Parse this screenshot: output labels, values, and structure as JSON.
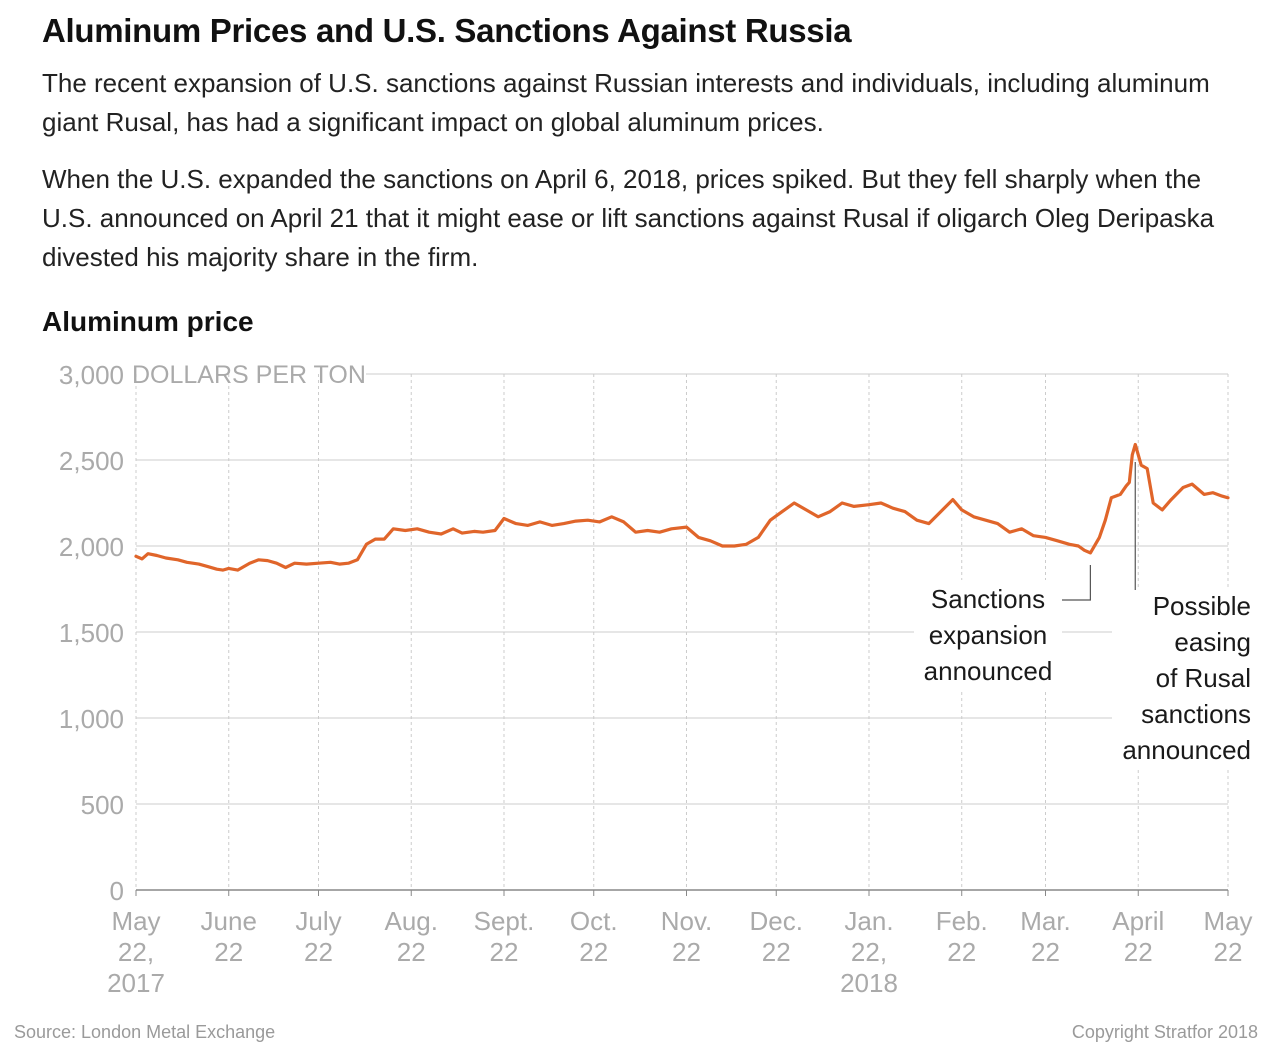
{
  "title": "Aluminum Prices and U.S. Sanctions Against Russia",
  "paragraphs": [
    "The recent expansion of U.S. sanctions against Russian interests and individuals, including aluminum giant Rusal, has had a significant impact on global aluminum prices.",
    "When the U.S. expanded the sanctions on April 6, 2018, prices spiked. But they fell sharply when the U.S. announced on April 21 that it might ease or lift sanctions against Rusal if oligarch Oleg Deripaska divested his majority share in the firm."
  ],
  "source": "Source: London Metal Exchange",
  "copyright": "Copyright Stratfor 2018",
  "colors": {
    "line": "#e0652a",
    "grid": "#cccccc",
    "axis_text": "#aaaaaa"
  },
  "chart_data": {
    "type": "line",
    "title": "Aluminum price",
    "ylabel": "DOLLARS PER TON",
    "ylim": [
      0,
      3000
    ],
    "yticks": [
      0,
      500,
      1000,
      1500,
      2000,
      2500,
      3000
    ],
    "ytick_labels": [
      "0",
      "500",
      "1,000",
      "1,500",
      "2,000",
      "2,500",
      "3,000"
    ],
    "xlim": [
      "2017-05-22",
      "2018-05-22"
    ],
    "xticks": [
      {
        "date": "2017-05-22",
        "label": [
          "May",
          "22,",
          "2017"
        ]
      },
      {
        "date": "2017-06-22",
        "label": [
          "June",
          "22"
        ]
      },
      {
        "date": "2017-07-22",
        "label": [
          "July",
          "22"
        ]
      },
      {
        "date": "2017-08-22",
        "label": [
          "Aug.",
          "22"
        ]
      },
      {
        "date": "2017-09-22",
        "label": [
          "Sept.",
          "22"
        ]
      },
      {
        "date": "2017-10-22",
        "label": [
          "Oct.",
          "22"
        ]
      },
      {
        "date": "2017-11-22",
        "label": [
          "Nov.",
          "22"
        ]
      },
      {
        "date": "2017-12-22",
        "label": [
          "Dec.",
          "22"
        ]
      },
      {
        "date": "2018-01-22",
        "label": [
          "Jan.",
          "22,",
          "2018"
        ]
      },
      {
        "date": "2018-02-22",
        "label": [
          "Feb.",
          "22"
        ]
      },
      {
        "date": "2018-03-22",
        "label": [
          "Mar.",
          "22"
        ]
      },
      {
        "date": "2018-04-22",
        "label": [
          "April",
          "22"
        ]
      },
      {
        "date": "2018-05-22",
        "label": [
          "May",
          "22"
        ]
      }
    ],
    "grid": true,
    "series": [
      {
        "x": [
          "2017-05-22",
          "2017-05-24",
          "2017-05-26",
          "2017-05-29",
          "2017-06-01",
          "2017-06-05",
          "2017-06-08",
          "2017-06-12",
          "2017-06-15",
          "2017-06-18",
          "2017-06-20",
          "2017-06-22",
          "2017-06-25",
          "2017-06-29",
          "2017-07-02",
          "2017-07-05",
          "2017-07-08",
          "2017-07-11",
          "2017-07-14",
          "2017-07-18",
          "2017-07-22",
          "2017-07-26",
          "2017-07-29",
          "2017-08-01",
          "2017-08-04",
          "2017-08-07",
          "2017-08-10",
          "2017-08-13",
          "2017-08-16",
          "2017-08-20",
          "2017-08-24",
          "2017-08-28",
          "2017-09-01",
          "2017-09-05",
          "2017-09-08",
          "2017-09-12",
          "2017-09-15",
          "2017-09-19",
          "2017-09-22",
          "2017-09-26",
          "2017-09-30",
          "2017-10-04",
          "2017-10-08",
          "2017-10-12",
          "2017-10-16",
          "2017-10-20",
          "2017-10-24",
          "2017-10-28",
          "2017-11-01",
          "2017-11-05",
          "2017-11-09",
          "2017-11-13",
          "2017-11-17",
          "2017-11-22",
          "2017-11-26",
          "2017-11-30",
          "2017-12-04",
          "2017-12-08",
          "2017-12-12",
          "2017-12-16",
          "2017-12-20",
          "2017-12-24",
          "2017-12-28",
          "2018-01-01",
          "2018-01-05",
          "2018-01-09",
          "2018-01-13",
          "2018-01-17",
          "2018-01-22",
          "2018-01-26",
          "2018-01-30",
          "2018-02-03",
          "2018-02-07",
          "2018-02-11",
          "2018-02-15",
          "2018-02-19",
          "2018-02-22",
          "2018-02-26",
          "2018-03-02",
          "2018-03-06",
          "2018-03-10",
          "2018-03-14",
          "2018-03-18",
          "2018-03-22",
          "2018-03-26",
          "2018-03-30",
          "2018-04-02",
          "2018-04-04",
          "2018-04-06",
          "2018-04-09",
          "2018-04-11",
          "2018-04-13",
          "2018-04-16",
          "2018-04-18",
          "2018-04-19",
          "2018-04-20",
          "2018-04-21",
          "2018-04-23",
          "2018-04-25",
          "2018-04-27",
          "2018-04-30",
          "2018-05-03",
          "2018-05-07",
          "2018-05-10",
          "2018-05-14",
          "2018-05-17",
          "2018-05-20",
          "2018-05-22"
        ],
        "y": [
          1940,
          1925,
          1955,
          1945,
          1930,
          1920,
          1905,
          1895,
          1880,
          1865,
          1860,
          1870,
          1860,
          1900,
          1920,
          1915,
          1900,
          1875,
          1900,
          1895,
          1900,
          1905,
          1895,
          1900,
          1920,
          2010,
          2040,
          2040,
          2100,
          2090,
          2100,
          2080,
          2070,
          2100,
          2075,
          2085,
          2080,
          2090,
          2160,
          2130,
          2120,
          2140,
          2120,
          2130,
          2145,
          2150,
          2140,
          2170,
          2140,
          2080,
          2090,
          2080,
          2100,
          2110,
          2050,
          2030,
          2000,
          2000,
          2010,
          2050,
          2150,
          2200,
          2250,
          2210,
          2170,
          2200,
          2250,
          2230,
          2240,
          2250,
          2220,
          2200,
          2150,
          2130,
          2200,
          2270,
          2210,
          2170,
          2150,
          2130,
          2080,
          2100,
          2060,
          2050,
          2030,
          2010,
          2000,
          1975,
          1960,
          2050,
          2150,
          2280,
          2300,
          2350,
          2370,
          2530,
          2590,
          2470,
          2450,
          2250,
          2210,
          2270,
          2340,
          2360,
          2300,
          2310,
          2290,
          2280
        ]
      }
    ],
    "annotations": [
      {
        "date": "2018-04-06",
        "text": [
          "Sanctions",
          "expansion",
          "announced"
        ]
      },
      {
        "date": "2018-04-21",
        "text": [
          "Possible",
          "easing",
          "of Rusal",
          "sanctions",
          "announced"
        ]
      }
    ]
  }
}
